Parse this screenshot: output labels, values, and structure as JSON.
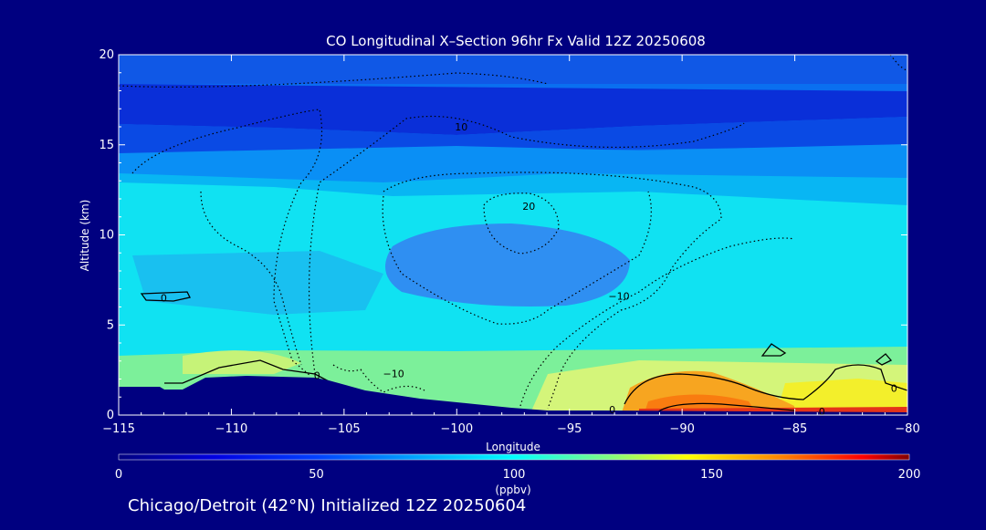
{
  "colors": {
    "background": "#000080",
    "text": "#ffffff",
    "contour": "#000000",
    "terrain": "#000080"
  },
  "chart_data": {
    "type": "heatmap",
    "title": "CO Longitudinal X–Section 96hr  Fx Valid 12Z 20250608",
    "xlabel": "Longitude",
    "ylabel": "Altitude (km)",
    "xlim": [
      -115,
      -80
    ],
    "ylim": [
      0,
      20
    ],
    "xticks": [
      -115,
      -110,
      -105,
      -100,
      -95,
      -90,
      -85,
      -80
    ],
    "xtick_labels": [
      "−115",
      "−110",
      "−105",
      "−100",
      "−95",
      "−90",
      "−85",
      "−80"
    ],
    "yticks": [
      0,
      5,
      10,
      15,
      20
    ],
    "ytick_labels": [
      "0",
      "5",
      "10",
      "15",
      "20"
    ],
    "colorbar": {
      "range": [
        0,
        200
      ],
      "ticks": [
        0,
        50,
        100,
        150,
        200
      ],
      "tick_labels": [
        "0",
        "50",
        "100",
        "150",
        "200"
      ],
      "unit": "(ppbv)"
    },
    "contour_labels": [
      {
        "text": "10",
        "lon": -99.8,
        "alt": 16.0
      },
      {
        "text": "20",
        "lon": -96.8,
        "alt": 11.6
      },
      {
        "text": "−10",
        "lon": -92.8,
        "alt": 6.6
      },
      {
        "text": "−10",
        "lon": -102.8,
        "alt": 2.3
      },
      {
        "text": "0",
        "lon": -113.0,
        "alt": 6.5
      },
      {
        "text": "0",
        "lon": -106.2,
        "alt": 2.2
      },
      {
        "text": "0",
        "lon": -93.1,
        "alt": 0.3
      },
      {
        "text": "0",
        "lon": -83.8,
        "alt": 0.2
      },
      {
        "text": "0",
        "lon": -80.6,
        "alt": 1.5
      }
    ],
    "footer": "Chicago/Detroit (42°N) Initialized 12Z 20250604"
  }
}
